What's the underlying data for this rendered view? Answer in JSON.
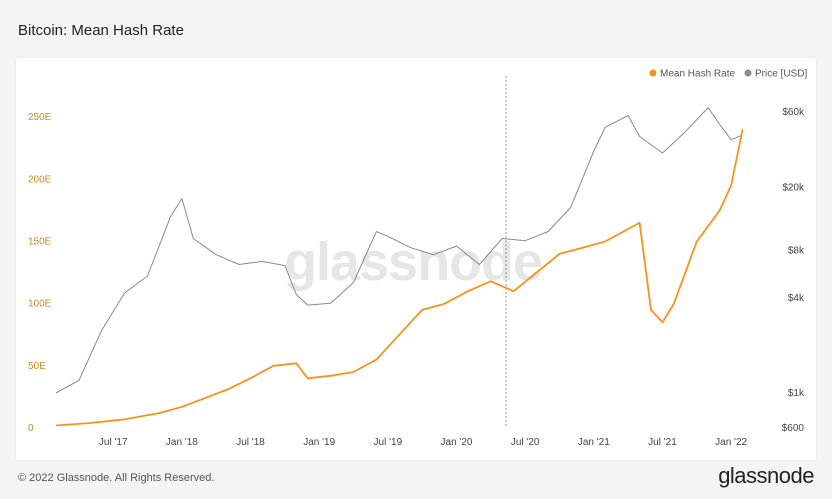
{
  "title": "Bitcoin: Mean Hash Rate",
  "footer": "© 2022 Glassnode. All Rights Reserved.",
  "brand": "glassnode",
  "watermark": "glassnode",
  "colors": {
    "hash": "#f7931a",
    "price": "#8a8a8a",
    "left_axis": "#c8892a"
  },
  "chart_data": {
    "type": "line",
    "title": "Bitcoin: Mean Hash Rate",
    "legend_position": "top-right",
    "grid": false,
    "x_range": [
      "2017-02",
      "2022-03"
    ],
    "x_ticks": [
      "Jul '17",
      "Jan '18",
      "Jul '18",
      "Jan '19",
      "Jul '19",
      "Jan '20",
      "Jul '20",
      "Jan '21",
      "Jul '21",
      "Jan '22"
    ],
    "x_tick_dates": [
      "2017-07-01",
      "2018-01-01",
      "2018-07-01",
      "2019-01-01",
      "2019-07-01",
      "2020-01-01",
      "2020-07-01",
      "2021-01-01",
      "2021-07-01",
      "2022-01-01"
    ],
    "vertical_marker_date": "2020-05-11",
    "left_axis": {
      "ticks": [
        "0",
        "50E",
        "100E",
        "150E",
        "200E",
        "250E"
      ],
      "values": [
        0,
        50,
        100,
        150,
        200,
        250
      ],
      "unit": "EH/s",
      "range": [
        0,
        275
      ]
    },
    "right_axis": {
      "scale": "log",
      "ticks": [
        "$600",
        "$1k",
        "$4k",
        "$8k",
        "$20k",
        "$60k"
      ],
      "values": [
        600,
        1000,
        4000,
        8000,
        20000,
        60000
      ],
      "range": [
        600,
        60000
      ]
    },
    "series": [
      {
        "name": "Mean Hash Rate",
        "axis": "left",
        "x": [
          "2017-02",
          "2017-05",
          "2017-08",
          "2017-11",
          "2018-01",
          "2018-03",
          "2018-05",
          "2018-07",
          "2018-09",
          "2018-11",
          "2018-12",
          "2019-02",
          "2019-04",
          "2019-06",
          "2019-07",
          "2019-09",
          "2019-10",
          "2019-12",
          "2020-02",
          "2020-04",
          "2020-06",
          "2020-08",
          "2020-10",
          "2020-12",
          "2021-02",
          "2021-04",
          "2021-05",
          "2021-06",
          "2021-07",
          "2021-08",
          "2021-10",
          "2021-12",
          "2022-01",
          "2022-02"
        ],
        "values": [
          2,
          4,
          7,
          12,
          17,
          24,
          31,
          40,
          50,
          52,
          40,
          42,
          45,
          55,
          65,
          85,
          95,
          100,
          110,
          118,
          110,
          125,
          140,
          145,
          150,
          160,
          165,
          95,
          85,
          100,
          150,
          175,
          195,
          240
        ]
      },
      {
        "name": "Price [USD]",
        "axis": "right",
        "x": [
          "2017-02",
          "2017-04",
          "2017-06",
          "2017-08",
          "2017-10",
          "2017-12",
          "2018-01",
          "2018-02",
          "2018-04",
          "2018-06",
          "2018-08",
          "2018-10",
          "2018-11",
          "2018-12",
          "2019-02",
          "2019-04",
          "2019-06",
          "2019-07",
          "2019-09",
          "2019-11",
          "2020-01",
          "2020-03",
          "2020-05",
          "2020-07",
          "2020-09",
          "2020-11",
          "2021-01",
          "2021-02",
          "2021-04",
          "2021-05",
          "2021-07",
          "2021-09",
          "2021-11",
          "2021-12",
          "2022-01",
          "2022-02"
        ],
        "values": [
          1000,
          1200,
          2500,
          4300,
          5500,
          13000,
          17000,
          9500,
          7500,
          6500,
          6800,
          6400,
          4200,
          3600,
          3700,
          5000,
          10500,
          9800,
          8300,
          7500,
          8500,
          6500,
          9500,
          9200,
          10500,
          15000,
          34000,
          48000,
          57000,
          42000,
          33000,
          45000,
          64000,
          50000,
          40000,
          43000
        ]
      }
    ]
  }
}
